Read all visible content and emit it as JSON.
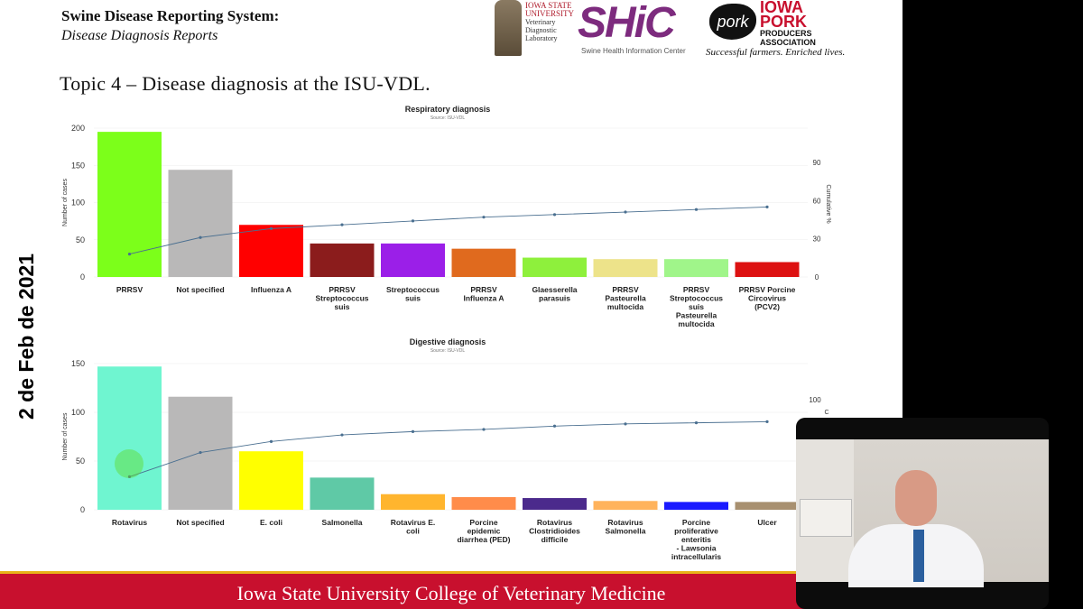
{
  "header": {
    "title": "Swine Disease Reporting System:",
    "subtitle": "Disease Diagnosis Reports",
    "topic": "Topic 4 – Disease diagnosis at the ISU-VDL."
  },
  "logos": {
    "isu_line1": "IOWA STATE",
    "isu_line2": "UNIVERSITY",
    "isu_line3": "Veterinary",
    "isu_line4": "Diagnostic",
    "isu_line5": "Laboratory",
    "shic": "SHiC",
    "shic_sub": "Swine Health Information Center",
    "pork": "pork",
    "iowa": "IOWA",
    "pork2": "PORK",
    "producers": "PRODUCERS",
    "association": "ASSOCIATION",
    "tagline": "Successful farmers. Enriched lives."
  },
  "side_date": "2 de Feb de 2021",
  "footer_text": "Iowa State University College of Veterinary Medicine",
  "chart_data": [
    {
      "type": "bar",
      "title": "Respiratory diagnosis",
      "subtitle": "Source: ISU-VDL",
      "ylabel": "Number of cases",
      "y2label": "Cumulative %",
      "ylim": [
        0,
        200
      ],
      "yticks": [
        0,
        50,
        100,
        150,
        200
      ],
      "y2ticks": [
        0,
        30,
        60,
        90
      ],
      "categories": [
        "PRRSV",
        "Not specified",
        "Influenza A",
        "PRRSV Streptococcus suis",
        "Streptococcus suis",
        "PRRSV Influenza A",
        "Glaesserella parasuis",
        "PRRSV Pasteurella multocida",
        "PRRSV Streptococcus suis Pasteurella multocida",
        "PRRSV Porcine Circovirus (PCV2)"
      ],
      "category_lines": [
        [
          "PRRSV"
        ],
        [
          "Not specified"
        ],
        [
          "Influenza A"
        ],
        [
          "PRRSV",
          "Streptococcus",
          "suis"
        ],
        [
          "Streptococcus",
          "suis"
        ],
        [
          "PRRSV",
          "Influenza A"
        ],
        [
          "Glaesserella",
          "parasuis"
        ],
        [
          "PRRSV",
          "Pasteurella",
          "multocida"
        ],
        [
          "PRRSV",
          "Streptococcus",
          "suis",
          "Pasteurella",
          "multocida"
        ],
        [
          "PRRSV Porcine",
          "Circovirus",
          "(PCV2)"
        ]
      ],
      "values": [
        195,
        144,
        70,
        45,
        45,
        38,
        26,
        24,
        24,
        20
      ],
      "colors": [
        "#7cff1a",
        "#b9b8b8",
        "#ff0000",
        "#8b1c1c",
        "#9b1fe8",
        "#e06a1e",
        "#8ef03c",
        "#ede38a",
        "#a0f58a",
        "#dd1111"
      ],
      "cumulative_pct": [
        18,
        31,
        38,
        41,
        44,
        47,
        49,
        51,
        53,
        55
      ]
    },
    {
      "type": "bar",
      "title": "Digestive diagnosis",
      "subtitle": "Source: ISU-VDL",
      "ylabel": "Number of cases",
      "y2label": "C",
      "y2ticks_visible": [
        "100"
      ],
      "ylim": [
        0,
        150
      ],
      "yticks": [
        0,
        50,
        100,
        150
      ],
      "categories": [
        "Rotavirus",
        "Not specified",
        "E. coli",
        "Salmonella",
        "Rotavirus E. coli",
        "Porcine epidemic diarrhea (PED)",
        "Rotavirus Clostridioides difficile",
        "Rotavirus Salmonella",
        "Porcine proliferative enteritis - Lawsonia intracellularis",
        "Ulcer"
      ],
      "category_lines": [
        [
          "Rotavirus"
        ],
        [
          "Not specified"
        ],
        [
          "E. coli"
        ],
        [
          "Salmonella"
        ],
        [
          "Rotavirus E.",
          "coli"
        ],
        [
          "Porcine",
          "epidemic",
          "diarrhea (PED)"
        ],
        [
          "Rotavirus",
          "Clostridioides",
          "difficile"
        ],
        [
          "Rotavirus",
          "Salmonella"
        ],
        [
          "Porcine",
          "proliferative",
          "enteritis",
          "- Lawsonia",
          "intracellularis"
        ],
        [
          "Ulcer"
        ]
      ],
      "values": [
        147,
        116,
        60,
        33,
        16,
        13,
        12,
        9,
        8,
        8
      ],
      "colors": [
        "#6ff5d0",
        "#b9b8b8",
        "#ffff00",
        "#5fc9a6",
        "#ffb52e",
        "#ff8c4a",
        "#4b2a8c",
        "#ffb35c",
        "#1a1aff",
        "#a89070"
      ],
      "cumulative_pct": [
        30,
        52,
        62,
        68,
        71,
        73,
        76,
        78,
        79,
        80
      ]
    }
  ]
}
